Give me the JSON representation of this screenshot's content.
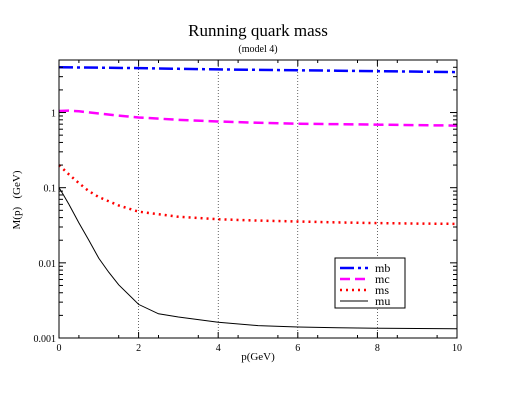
{
  "chart_data": {
    "type": "line",
    "title": "Running quark mass",
    "subtitle": "(model 4)",
    "xlabel": "p(GeV)",
    "ylabel": "M(p)   (GeV)",
    "xlim": [
      0,
      10
    ],
    "ylim": [
      0.001,
      5
    ],
    "yscale": "log",
    "x_ticks": [
      "0",
      "2",
      "4",
      "6",
      "8",
      "10"
    ],
    "y_ticks": [
      "0.001",
      "0.01",
      "0.1",
      "1"
    ],
    "vertical_gridlines_at": [
      2,
      4,
      6,
      8
    ],
    "legend_position": "bottom-right",
    "series": [
      {
        "name": "mb",
        "color": "#0000ff",
        "dash": "dash-dot",
        "x": [
          0,
          1,
          2,
          3,
          4,
          5,
          6,
          7,
          8,
          9,
          10
        ],
        "y": [
          4.0,
          3.95,
          3.9,
          3.82,
          3.75,
          3.7,
          3.65,
          3.6,
          3.55,
          3.5,
          3.45
        ]
      },
      {
        "name": "mc",
        "color": "#ff00ff",
        "dash": "dash",
        "x": [
          0,
          0.25,
          0.5,
          1,
          1.5,
          2,
          3,
          4,
          5,
          6,
          7,
          8,
          9,
          10
        ],
        "y": [
          1.05,
          1.06,
          1.04,
          0.97,
          0.91,
          0.86,
          0.8,
          0.76,
          0.73,
          0.71,
          0.7,
          0.69,
          0.68,
          0.67
        ]
      },
      {
        "name": "ms",
        "color": "#ff0000",
        "dash": "dot",
        "x": [
          0,
          0.25,
          0.5,
          0.75,
          1,
          1.5,
          2,
          3,
          4,
          5,
          6,
          7,
          8,
          9,
          10
        ],
        "y": [
          0.2,
          0.15,
          0.115,
          0.09,
          0.075,
          0.058,
          0.048,
          0.041,
          0.038,
          0.0365,
          0.0355,
          0.0345,
          0.0338,
          0.0333,
          0.033
        ]
      },
      {
        "name": "mu",
        "color": "#000000",
        "dash": "solid",
        "x": [
          0,
          0.1,
          0.25,
          0.5,
          0.75,
          1,
          1.25,
          1.5,
          2,
          2.5,
          3,
          4,
          5,
          6,
          7,
          8,
          9,
          10
        ],
        "y": [
          0.1,
          0.082,
          0.06,
          0.034,
          0.02,
          0.0115,
          0.0075,
          0.0051,
          0.0028,
          0.0021,
          0.0019,
          0.00162,
          0.00146,
          0.0014,
          0.00137,
          0.00135,
          0.00134,
          0.00133
        ]
      }
    ]
  }
}
